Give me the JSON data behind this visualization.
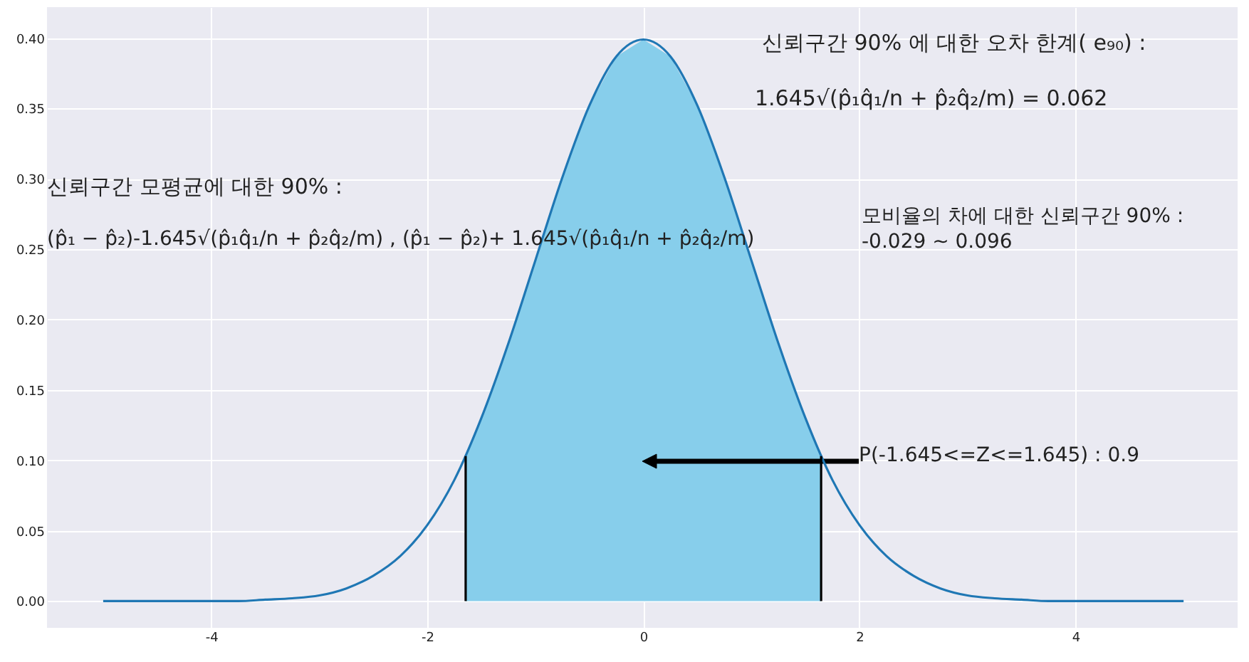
{
  "chart_data": {
    "type": "line",
    "xlim": [
      -5.52,
      5.5
    ],
    "ylim": [
      -0.019,
      0.422
    ],
    "xticks": [
      -4,
      -2,
      0,
      2,
      4
    ],
    "yticks": [
      {
        "value": 0,
        "label": "0.00"
      },
      {
        "value": 0.05,
        "label": "0.05"
      },
      {
        "value": 0.1,
        "label": "0.10"
      },
      {
        "value": 0.15,
        "label": "0.15"
      },
      {
        "value": 0.2,
        "label": "0.20"
      },
      {
        "value": 0.25,
        "label": "0.25"
      },
      {
        "value": 0.3,
        "label": "0.30"
      },
      {
        "value": 0.35,
        "label": "0.35"
      },
      {
        "value": 0.4,
        "label": "0.40"
      }
    ],
    "grid": true,
    "marker": "none",
    "line_style": "solid",
    "series": [
      {
        "type": "area",
        "color": "#87ceeb",
        "x": [
          -1.645,
          -1.5,
          -1.25,
          -1,
          -0.75,
          -0.5,
          -0.25,
          0,
          0.25,
          0.5,
          0.75,
          1,
          1.25,
          1.5,
          1.645
        ],
        "values": [
          0.103,
          0.13,
          0.183,
          0.242,
          0.301,
          0.352,
          0.387,
          0.399,
          0.387,
          0.352,
          0.301,
          0.242,
          0.183,
          0.13,
          0.103
        ]
      },
      {
        "color": "#1f77b4",
        "x": [
          -5,
          -4.75,
          -4.5,
          -4.25,
          -4,
          -3.75,
          -3.5,
          -3.25,
          -3,
          -2.75,
          -2.5,
          -2.25,
          -2,
          -1.75,
          -1.5,
          -1.25,
          -1,
          -0.75,
          -0.5,
          -0.25,
          0,
          0.25,
          0.5,
          0.75,
          1,
          1.25,
          1.5,
          1.75,
          2,
          2.25,
          2.5,
          2.75,
          3,
          3.25,
          3.5,
          3.75,
          4,
          4.25,
          4.5,
          4.75,
          5
        ],
        "values": [
          0,
          0,
          0,
          0,
          0,
          0,
          0.001,
          0.002,
          0.004,
          0.009,
          0.018,
          0.032,
          0.054,
          0.086,
          0.13,
          0.183,
          0.242,
          0.301,
          0.352,
          0.387,
          0.399,
          0.387,
          0.352,
          0.301,
          0.242,
          0.183,
          0.13,
          0.086,
          0.054,
          0.032,
          0.018,
          0.009,
          0.004,
          0.002,
          0.001,
          0,
          0,
          0,
          0,
          0,
          0
        ]
      },
      {
        "color": "#000000",
        "x": [
          -1.645,
          -1.645
        ],
        "values": [
          0,
          0.103
        ]
      },
      {
        "color": "#000000",
        "x": [
          1.645,
          1.645
        ],
        "values": [
          0,
          0.103
        ]
      }
    ],
    "annotations": [
      "신뢰구간 90% 에 대한 오차 한계( e₉₀) :",
      "1.645√(p̂₁q̂₁/n + p̂₂q̂₂/m) = 0.062",
      "신뢰구간 모평균에 대한 90% :",
      "(p̂₁ − p̂₂)-1.645√(p̂₁q̂₁/n + p̂₂q̂₂/m) , (p̂₁ − p̂₂)+ 1.645√(p̂₁q̂₁/n + p̂₂q̂₂/m)",
      "모비율의 차에 대한 신뢰구간 90% :",
      "-0.029 ~ 0.096",
      "P(-1.645<=Z<=1.645) : 0.9"
    ]
  }
}
